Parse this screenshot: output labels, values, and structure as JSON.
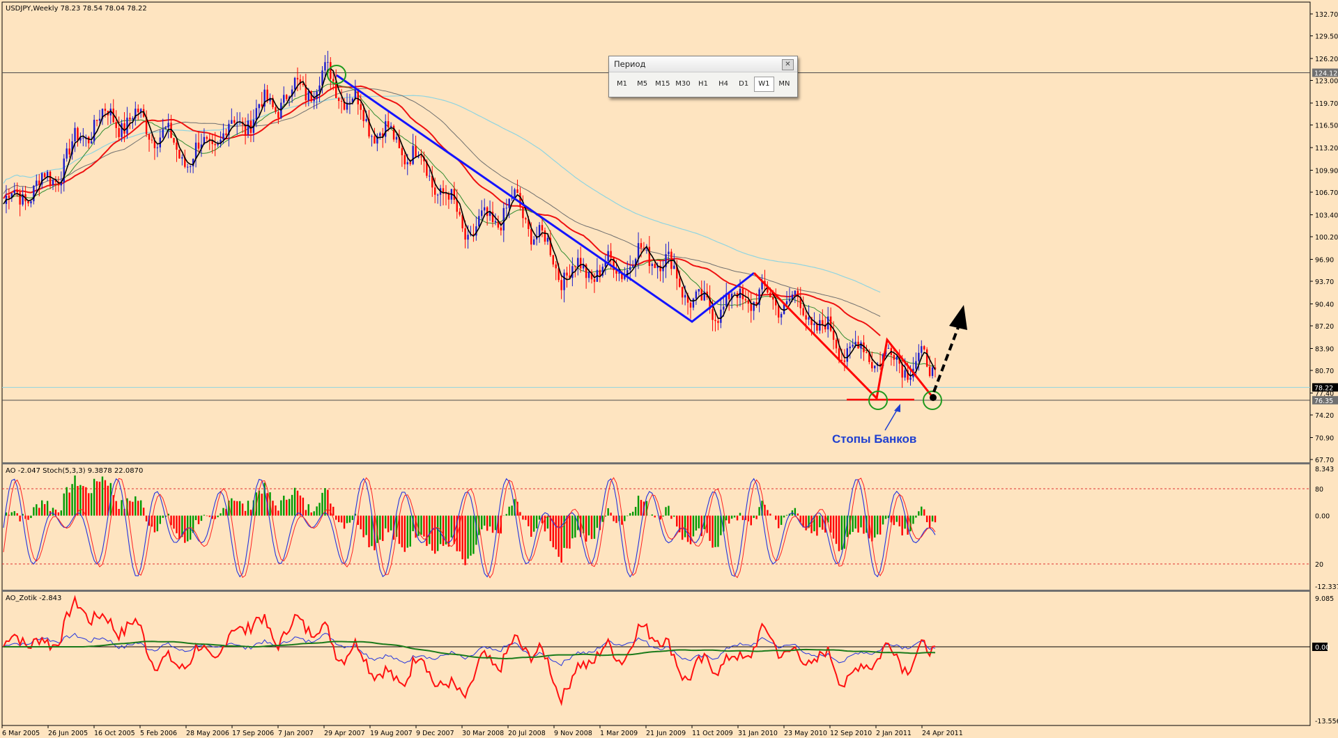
{
  "period_panel": {
    "title": "Период",
    "close_icon": "close-icon",
    "timeframes": [
      "M1",
      "M5",
      "M15",
      "M30",
      "H1",
      "H4",
      "D1",
      "W1",
      "MN"
    ],
    "active": "W1"
  },
  "main_chart": {
    "header": "USDJPY,Weekly  78.23 78.54 78.04 78.22",
    "price_ticks": [
      "132.70",
      "129.50",
      "126.20",
      "123.00",
      "119.70",
      "116.50",
      "113.20",
      "109.90",
      "106.70",
      "103.40",
      "100.20",
      "96.90",
      "93.70",
      "90.40",
      "87.20",
      "83.90",
      "80.70",
      "77.40",
      "74.20",
      "70.90",
      "67.70"
    ],
    "price_range": [
      67.7,
      132.7
    ],
    "price_boxes": [
      {
        "text": "124.12",
        "value": 124.12
      },
      {
        "text": "78.22",
        "value": 78.22
      },
      {
        "text": "76.35",
        "value": 76.35
      }
    ],
    "annotation": "Стопы Банков"
  },
  "ao_stoch": {
    "header": "AO -2.047  Stoch(5,3,3) 9.3878 22.0870",
    "ticks": [
      "8.343",
      "80",
      "0.00",
      "20",
      "-12.337"
    ]
  },
  "ao_zotik": {
    "header": "AO_Zotik -2.843",
    "ticks": [
      "9.085",
      "0.00",
      "-13.556"
    ]
  },
  "date_ticks": [
    "6 Mar 2005",
    "26 Jun 2005",
    "16 Oct 2005",
    "5 Feb 2006",
    "28 May 2006",
    "17 Sep 2006",
    "7 Jan 2007",
    "29 Apr 2007",
    "19 Aug 2007",
    "9 Dec 2007",
    "30 Mar 2008",
    "20 Jul 2008",
    "9 Nov 2008",
    "1 Mar 2009",
    "21 Jun 2009",
    "11 Oct 2009",
    "31 Jan 2010",
    "23 May 2010",
    "12 Sep 2010",
    "2 Jan 2011",
    "24 Apr 2011"
  ],
  "colors": {
    "background": "#fee4c0",
    "bull_candle": "#1b1bcc",
    "bear_candle": "#ff0000",
    "pattern_blue": "#1414ff",
    "pattern_red": "#ff0000",
    "ma_fast": "#000000",
    "ma_red": "#ee1111",
    "ma_green": "#2e8b2e",
    "ma_gray": "#6f6f6f",
    "ma_cyan": "#8fd4e0",
    "ao_up": "#009900",
    "ao_down": "#ff0000"
  },
  "chart_data": [
    {
      "type": "line",
      "title": "USDJPY,Weekly",
      "subtitle": "78.23 78.54 78.04 78.22",
      "x": [
        "6 Mar 2005",
        "26 Jun 2005",
        "16 Oct 2005",
        "5 Feb 2006",
        "28 May 2006",
        "17 Sep 2006",
        "7 Jan 2007",
        "29 Apr 2007",
        "19 Aug 2007",
        "9 Dec 2007",
        "30 Mar 2008",
        "20 Jul 2008",
        "9 Nov 2008",
        "1 Mar 2009",
        "21 Jun 2009",
        "11 Oct 2009",
        "31 Jan 2010",
        "23 May 2010",
        "12 Sep 2010",
        "2 Jan 2011",
        "24 Apr 2011"
      ],
      "series": [
        {
          "values": [
            105.0,
            108.5,
            117.5,
            117.0,
            111.5,
            116.5,
            120.5,
            123.5,
            116.0,
            111.0,
            100.5,
            105.0,
            95.0,
            95.5,
            98.0,
            89.5,
            91.5,
            90.5,
            84.0,
            82.5,
            81.0
          ]
        }
      ],
      "ylim": [
        67.7,
        132.7
      ],
      "annotations": [
        {
          "text": "Стопы Банков",
          "value": 76.35
        }
      ],
      "horizontal_levels": [
        124.12,
        78.22,
        76.35
      ]
    },
    {
      "type": "bar",
      "title": "AO -2.047  Stoch(5,3,3) 9.3878 22.0870",
      "ylim": [
        -12.337,
        8.343
      ],
      "stoch_levels": [
        80,
        20
      ]
    },
    {
      "type": "line",
      "title": "AO_Zotik -2.843",
      "ylim": [
        -13.556,
        9.085
      ]
    }
  ]
}
